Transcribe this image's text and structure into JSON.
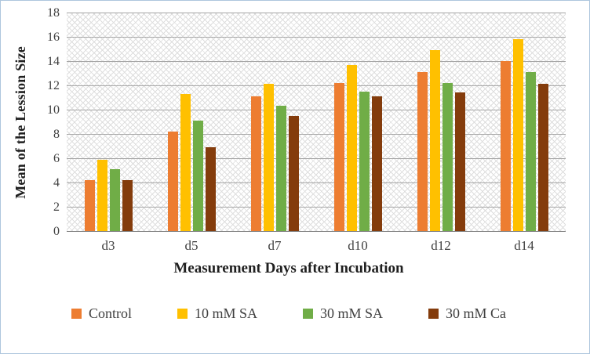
{
  "chart_data": {
    "type": "bar",
    "title": "",
    "categories": [
      "d3",
      "d5",
      "d7",
      "d10",
      "d12",
      "d14"
    ],
    "series": [
      {
        "name": "Control",
        "color": "#ED7D31",
        "values": [
          4.2,
          8.2,
          11.1,
          12.2,
          13.1,
          14.0
        ]
      },
      {
        "name": "10 mM SA",
        "color": "#FFC000",
        "values": [
          5.9,
          11.3,
          12.1,
          13.7,
          14.9,
          15.8
        ]
      },
      {
        "name": "30 mM SA",
        "color": "#70AD47",
        "values": [
          5.1,
          9.1,
          10.3,
          11.5,
          12.2,
          13.1
        ]
      },
      {
        "name": "30 mM Ca",
        "color": "#843C0C",
        "values": [
          4.2,
          6.9,
          9.5,
          11.1,
          11.4,
          12.1
        ]
      }
    ],
    "xlabel": "Measurement Days after Incubation",
    "ylabel": "Mean of the Lession Size",
    "ylim": [
      0,
      18
    ],
    "yticks": [
      0,
      2,
      4,
      6,
      8,
      10,
      12,
      14,
      16,
      18
    ],
    "grid": true,
    "legend_position": "bottom",
    "plot_background_pattern": "diagonal-crosshatch",
    "gridline_color": "#a6a6a6",
    "axis_line_color": "#7f7f7f"
  }
}
